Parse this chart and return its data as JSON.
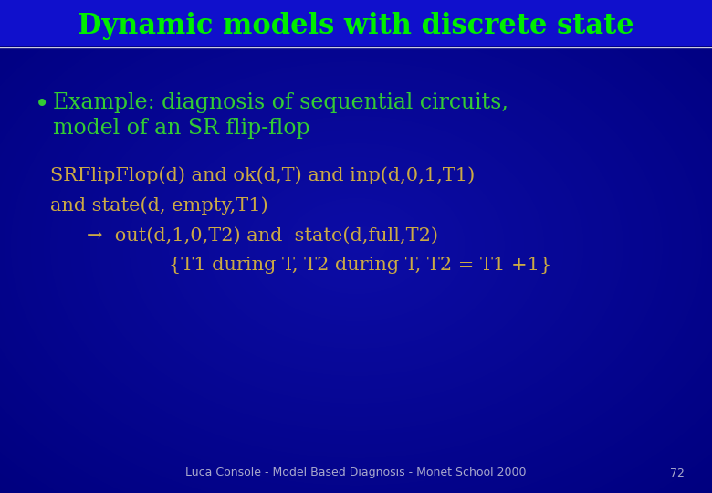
{
  "title": "Dynamic models with discrete state",
  "title_color": "#00ee00",
  "title_fontsize": 22,
  "background_color": "#000080",
  "title_bar_color": "#0000aa",
  "separator_color": "#ccccdd",
  "bullet_text_line1": "Example: diagnosis of sequential circuits,",
  "bullet_text_line2": "model of an SR flip-flop",
  "bullet_color": "#33cc33",
  "bullet_fontsize": 17,
  "body_line1": "SRFlipFlop(d) and ok(d,T) and inp(d,0,1,T1)",
  "body_line2": "and state(d, empty,T1)",
  "body_line3": "→  out(d,1,0,T2) and  state(d,full,T2)",
  "body_line4": "{T1 during T, T2 during T, T2 = T1 +1}",
  "body_color": "#ccaa44",
  "body_fontsize": 15,
  "footer_text": "Luca Console - Model Based Diagnosis - Monet School 2000",
  "footer_page": "72",
  "footer_color": "#aaaacc",
  "footer_fontsize": 9
}
